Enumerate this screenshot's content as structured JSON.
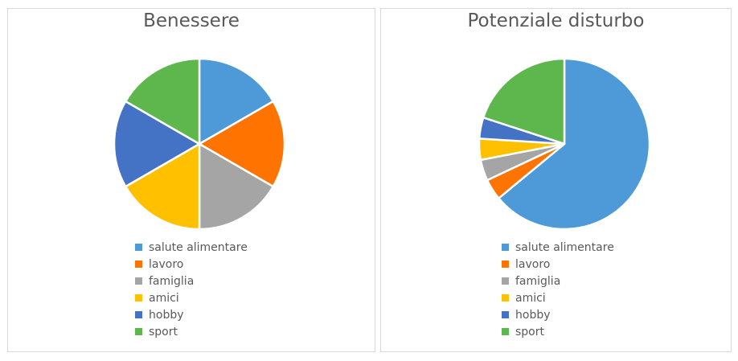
{
  "chart_data": [
    {
      "type": "pie",
      "title": "Benessere",
      "categories": [
        "salute alimentare",
        "lavoro",
        "famiglia",
        "amici",
        "hobby",
        "sport"
      ],
      "values": [
        16.67,
        16.67,
        16.67,
        16.67,
        16.67,
        16.67
      ],
      "colors": [
        "#4e9ad9",
        "#ff7300",
        "#a5a5a5",
        "#ffc000",
        "#4472c4",
        "#5eb74c"
      ],
      "legend_position": "bottom"
    },
    {
      "type": "pie",
      "title": "Potenziale disturbo",
      "categories": [
        "salute alimentare",
        "lavoro",
        "famiglia",
        "amici",
        "hobby",
        "sport"
      ],
      "values": [
        64,
        4,
        4,
        4,
        4,
        20
      ],
      "colors": [
        "#4e9ad9",
        "#ff7300",
        "#a5a5a5",
        "#ffc000",
        "#4472c4",
        "#5eb74c"
      ],
      "legend_position": "bottom"
    }
  ]
}
